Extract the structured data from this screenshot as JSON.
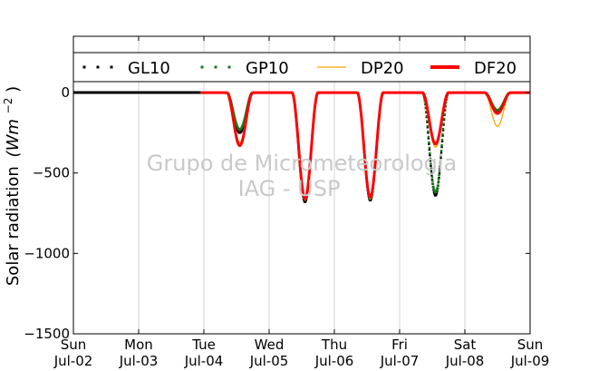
{
  "chart_data": {
    "type": "line",
    "ylabel": "Solar radiation",
    "ylabel_unit": "(Wm",
    "ylabel_exp": "−2",
    "ylabel_close": ")",
    "ylim": [
      -1500,
      350
    ],
    "yticks": [
      0,
      -500,
      -1000,
      -1500
    ],
    "ytick_labels": [
      "0",
      "−500",
      "−1000",
      "−1500"
    ],
    "xlim": [
      0,
      7
    ],
    "xtick_labels": [
      {
        "day": "Sun",
        "date": "Jul-02"
      },
      {
        "day": "Mon",
        "date": "Jul-03"
      },
      {
        "day": "Tue",
        "date": "Jul-04"
      },
      {
        "day": "Wed",
        "date": "Jul-05"
      },
      {
        "day": "Thu",
        "date": "Jul-06"
      },
      {
        "day": "Fri",
        "date": "Jul-07"
      },
      {
        "day": "Sat",
        "date": "Jul-08"
      },
      {
        "day": "Sun",
        "date": "Jul-09"
      }
    ],
    "grid": "vertical",
    "legend_position": "top",
    "legend": [
      {
        "name": "GL10",
        "style": "dots",
        "color": "#000000"
      },
      {
        "name": "GP10",
        "style": "dots",
        "color": "#1a7a1a"
      },
      {
        "name": "DP20",
        "style": "line",
        "color": "#ffa500"
      },
      {
        "name": "DF20",
        "style": "thick-line",
        "color": "#ff0000"
      }
    ],
    "watermark": [
      "Grupo de Micrometeorologia",
      "IAG - USP"
    ],
    "data_start_day": 1.95,
    "daily_minima": [
      {
        "day": 2.55,
        "GL10": -250,
        "GP10": -230,
        "DP20": -310,
        "DF20": -330
      },
      {
        "day": 3.55,
        "GL10": -680,
        "GP10": -660,
        "DP20": -670,
        "DF20": -660
      },
      {
        "day": 4.55,
        "GL10": -670,
        "GP10": -660,
        "DP20": -660,
        "DF20": -650
      },
      {
        "day": 5.55,
        "GL10": -640,
        "GP10": -620,
        "DP20": -340,
        "DF20": -320
      },
      {
        "day": 6.5,
        "GL10": -120,
        "GP10": -110,
        "DP20": -210,
        "DF20": -130
      }
    ]
  }
}
